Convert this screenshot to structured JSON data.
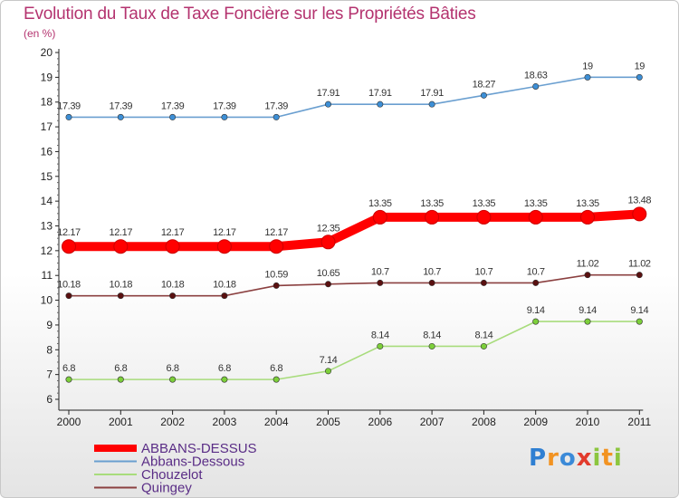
{
  "title": "Evolution du Taux de Taxe Foncière sur les Propriétés Bâties",
  "subtitle": "(en %)",
  "logo": {
    "text": "Proxiti",
    "letters": [
      {
        "ch": "P",
        "color": "#2f7fd2"
      },
      {
        "ch": "r",
        "color": "#f29322"
      },
      {
        "ch": "o",
        "color": "#3b8ad8"
      },
      {
        "ch": "x",
        "color": "#e23b2c"
      },
      {
        "ch": "i",
        "color": "#8cc63f"
      },
      {
        "ch": "t",
        "color": "#f29322"
      },
      {
        "ch": "i",
        "color": "#8cc63f"
      }
    ]
  },
  "chart_data": {
    "type": "line",
    "title": "Evolution du Taux de Taxe Foncière sur les Propriétés Bâties",
    "ylabel": "(en %)",
    "xlabel": "",
    "ylim": [
      6,
      20
    ],
    "yticks": [
      6,
      7,
      8,
      9,
      10,
      11,
      12,
      13,
      14,
      15,
      16,
      17,
      18,
      19,
      20
    ],
    "categories": [
      "2000",
      "2001",
      "2002",
      "2003",
      "2004",
      "2005",
      "2006",
      "2007",
      "2008",
      "2009",
      "2010",
      "2011"
    ],
    "series": [
      {
        "name": "Abbans-Dessous",
        "color": "#6a9fd0",
        "marker_color": "#3d8fd6",
        "values": [
          17.39,
          17.39,
          17.39,
          17.39,
          17.39,
          17.91,
          17.91,
          17.91,
          18.27,
          18.63,
          19,
          19
        ],
        "labels": [
          "17.39",
          "17.39",
          "17.39",
          "17.39",
          "17.39",
          "17.91",
          "17.91",
          "17.91",
          "18.27",
          "18.63",
          "19",
          "19"
        ]
      },
      {
        "name": "ABBANS-DESSUS",
        "color": "#ff0000",
        "marker_color": "#ff0000",
        "bold": true,
        "values": [
          12.17,
          12.17,
          12.17,
          12.17,
          12.17,
          12.35,
          13.35,
          13.35,
          13.35,
          13.35,
          13.35,
          13.48
        ],
        "labels": [
          "12.17",
          "12.17",
          "12.17",
          "12.17",
          "12.17",
          "12.35",
          "13.35",
          "13.35",
          "13.35",
          "13.35",
          "13.35",
          "13.48"
        ]
      },
      {
        "name": "Quingey",
        "color": "#8b4040",
        "marker_color": "#5a1010",
        "values": [
          10.18,
          10.18,
          10.18,
          10.18,
          10.59,
          10.65,
          10.7,
          10.7,
          10.7,
          10.7,
          11.02,
          11.02
        ],
        "labels": [
          "10.18",
          "10.18",
          "10.18",
          "10.18",
          "10.59",
          "10.65",
          "10.7",
          "10.7",
          "10.7",
          "10.7",
          "11.02",
          "11.02"
        ]
      },
      {
        "name": "Chouzelot",
        "color": "#a8dc7c",
        "marker_color": "#7ccf3a",
        "values": [
          6.8,
          6.8,
          6.8,
          6.8,
          6.8,
          7.14,
          8.14,
          8.14,
          8.14,
          9.14,
          9.14,
          9.14
        ],
        "labels": [
          "6.8",
          "6.8",
          "6.8",
          "6.8",
          "6.8",
          "7.14",
          "8.14",
          "8.14",
          "8.14",
          "9.14",
          "9.14",
          "9.14"
        ]
      }
    ],
    "legend": {
      "position": "bottom-left",
      "entries": [
        {
          "name": "ABBANS-DESSUS",
          "color": "#ff0000",
          "bold": true
        },
        {
          "name": "Abbans-Dessous",
          "color": "#6a9fd0"
        },
        {
          "name": "Chouzelot",
          "color": "#a8dc7c"
        },
        {
          "name": "Quingey",
          "color": "#8b4040"
        }
      ]
    }
  }
}
